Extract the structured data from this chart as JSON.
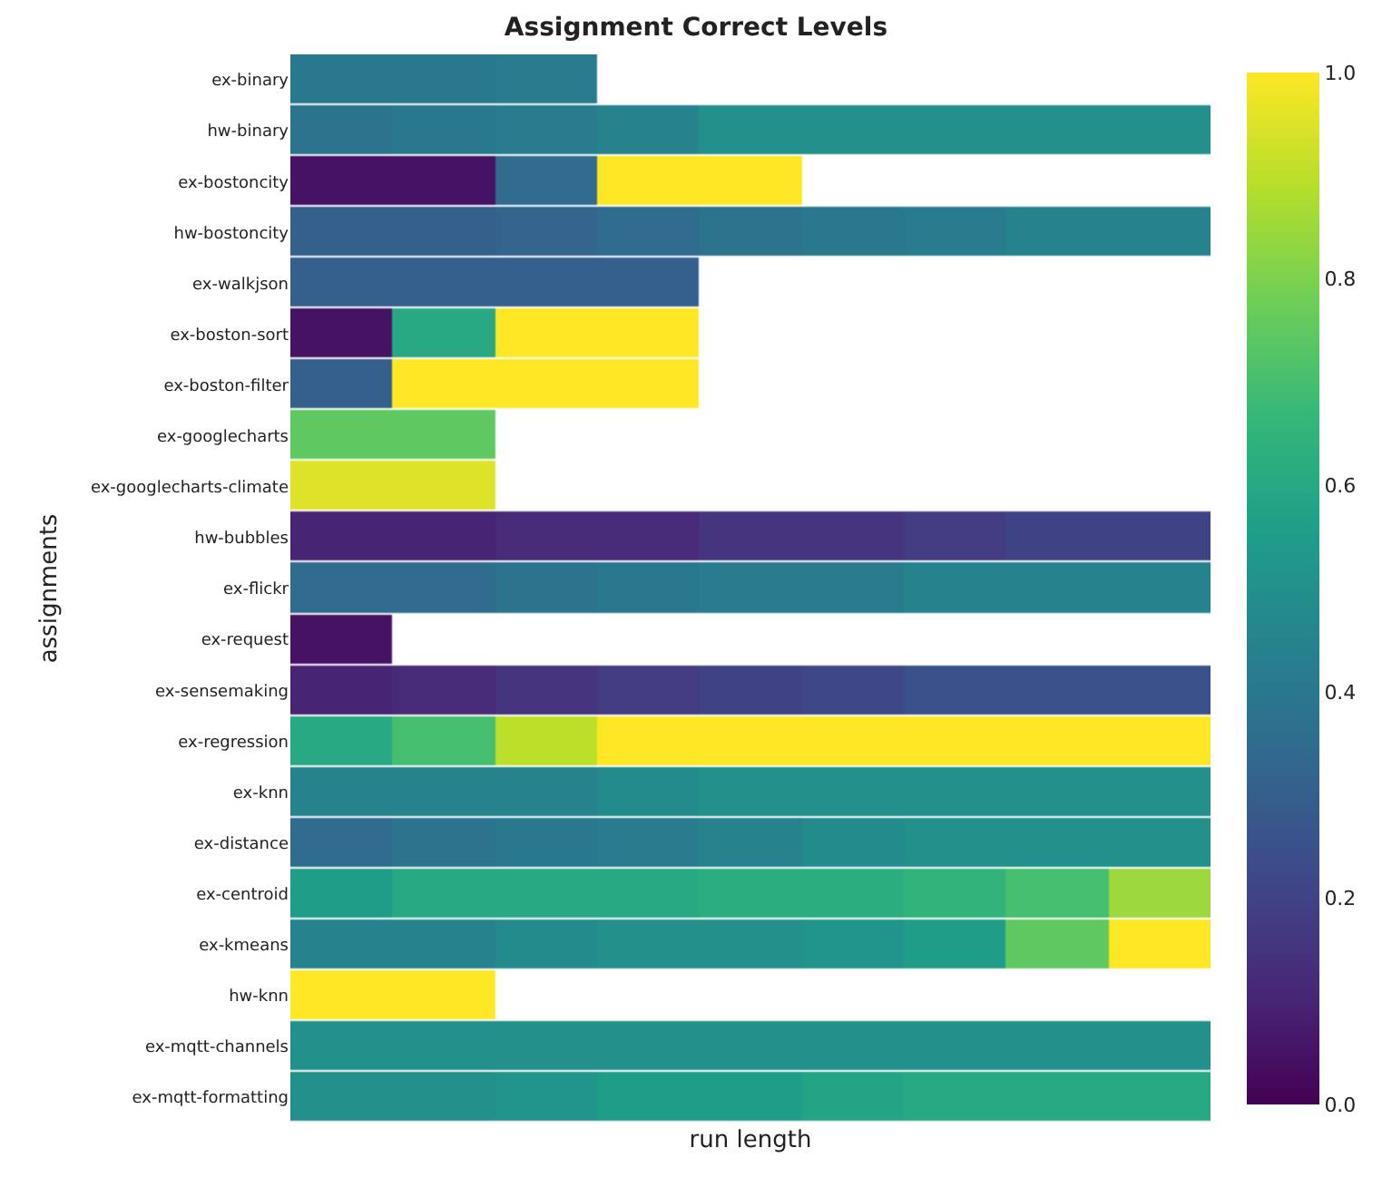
{
  "chart_data": {
    "type": "heatmap",
    "title": "Assignment Correct Levels",
    "xlabel": "run length",
    "ylabel": "assignments",
    "categories": [
      null,
      null,
      null,
      null,
      null,
      null,
      null,
      null,
      null
    ],
    "y_categories": [
      "ex-binary",
      "hw-binary",
      "ex-bostoncity",
      "hw-bostoncity",
      "ex-walkjson",
      "ex-boston-sort",
      "ex-boston-filter",
      "ex-googlecharts",
      "ex-googlecharts-climate",
      "hw-bubbles",
      "ex-flickr",
      "ex-request",
      "ex-sensemaking",
      "ex-regression",
      "ex-knn",
      "ex-distance",
      "ex-centroid",
      "ex-kmeans",
      "hw-knn",
      "ex-mqtt-channels",
      "ex-mqtt-formatting"
    ],
    "cells": [
      [
        0.4,
        0.4,
        0.42,
        null,
        null,
        null,
        null,
        null,
        null
      ],
      [
        0.38,
        0.4,
        0.42,
        0.45,
        0.5,
        0.5,
        0.5,
        0.5,
        0.5
      ],
      [
        0.05,
        0.05,
        0.35,
        1.0,
        1.0,
        null,
        null,
        null,
        null
      ],
      [
        0.3,
        0.3,
        0.32,
        0.35,
        0.38,
        0.4,
        0.42,
        0.45,
        0.45
      ],
      [
        0.3,
        0.3,
        0.3,
        0.3,
        null,
        null,
        null,
        null,
        null
      ],
      [
        0.05,
        0.6,
        1.0,
        1.0,
        null,
        null,
        null,
        null,
        null
      ],
      [
        0.3,
        1.0,
        1.0,
        1.0,
        null,
        null,
        null,
        null,
        null
      ],
      [
        0.75,
        0.75,
        null,
        null,
        null,
        null,
        null,
        null,
        null
      ],
      [
        0.95,
        0.95,
        null,
        null,
        null,
        null,
        null,
        null,
        null
      ],
      [
        0.1,
        0.1,
        0.12,
        0.12,
        0.15,
        0.15,
        0.18,
        0.2,
        0.2
      ],
      [
        0.35,
        0.35,
        0.38,
        0.4,
        0.42,
        0.42,
        0.45,
        0.45,
        0.45
      ],
      [
        0.05,
        null,
        null,
        null,
        null,
        null,
        null,
        null,
        null
      ],
      [
        0.1,
        0.12,
        0.15,
        0.18,
        0.2,
        0.22,
        0.25,
        0.25,
        0.25
      ],
      [
        0.6,
        0.7,
        0.9,
        1.0,
        1.0,
        1.0,
        1.0,
        1.0,
        1.0
      ],
      [
        0.45,
        0.45,
        0.45,
        0.48,
        0.5,
        0.5,
        0.5,
        0.5,
        0.5
      ],
      [
        0.35,
        0.38,
        0.4,
        0.42,
        0.45,
        0.48,
        0.5,
        0.5,
        0.5
      ],
      [
        0.55,
        0.6,
        0.6,
        0.6,
        0.62,
        0.62,
        0.65,
        0.7,
        0.85
      ],
      [
        0.45,
        0.45,
        0.48,
        0.5,
        0.5,
        0.52,
        0.55,
        0.75,
        1.0
      ],
      [
        1.0,
        1.0,
        null,
        null,
        null,
        null,
        null,
        null,
        null
      ],
      [
        0.5,
        0.5,
        0.5,
        0.5,
        0.5,
        0.5,
        0.5,
        0.5,
        0.5
      ],
      [
        0.5,
        0.5,
        0.52,
        0.55,
        0.55,
        0.58,
        0.6,
        0.6,
        0.6
      ]
    ],
    "clim": [
      0.0,
      1.0
    ],
    "cticks": [
      {
        "value": 0.0,
        "label": "0.0"
      },
      {
        "value": 0.2,
        "label": "0.2"
      },
      {
        "value": 0.4,
        "label": "0.4"
      },
      {
        "value": 0.6,
        "label": "0.6"
      },
      {
        "value": 0.8,
        "label": "0.8"
      },
      {
        "value": 1.0,
        "label": "1.0"
      }
    ],
    "tick_labels": "y"
  }
}
